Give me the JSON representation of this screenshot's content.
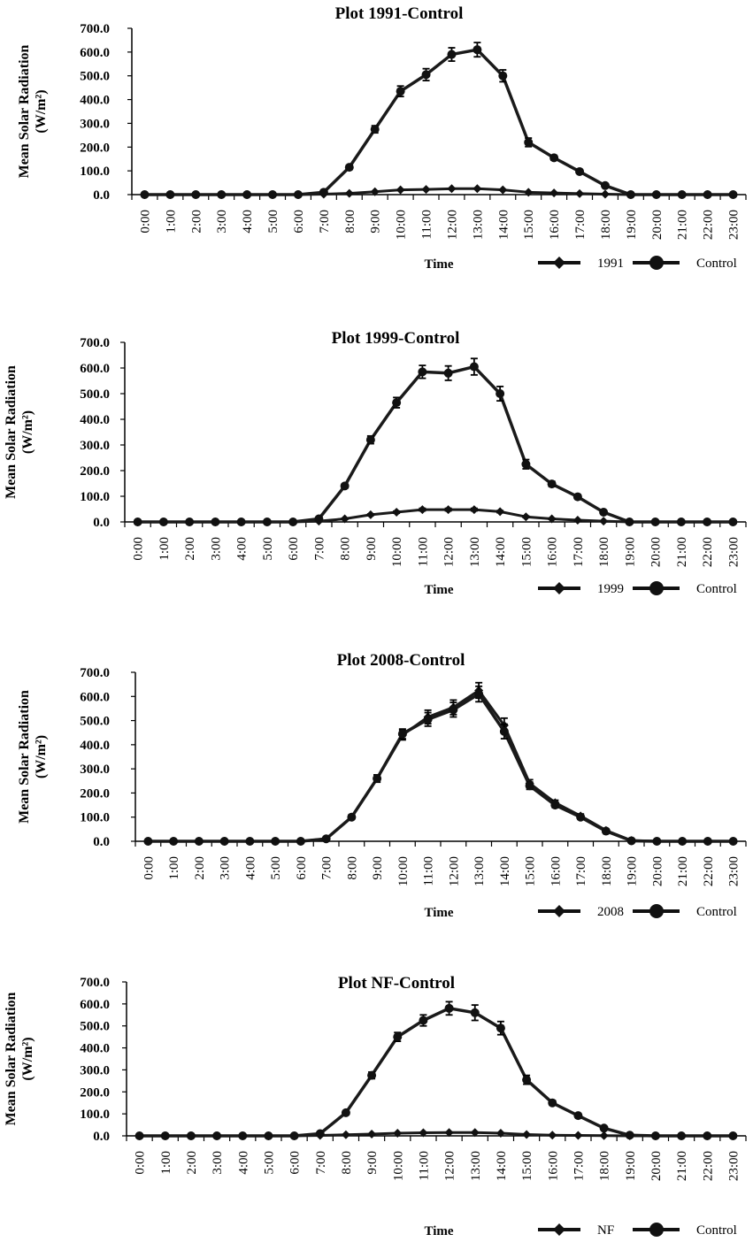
{
  "chart_data": [
    {
      "type": "line",
      "title": "Plot 1991-Control",
      "ylabel_line1": "Mean Solar Radiation",
      "ylabel_line2": "(W/m²)",
      "xlabel": "Time",
      "yticks": [
        "0.0",
        "100.0",
        "200.0",
        "300.0",
        "400.0",
        "500.0",
        "600.0",
        "700.0"
      ],
      "ylim": [
        0,
        700
      ],
      "categories": [
        "0:00",
        "1:00",
        "2:00",
        "3:00",
        "4:00",
        "5:00",
        "6:00",
        "7:00",
        "8:00",
        "9:00",
        "10:00",
        "11:00",
        "12:00",
        "13:00",
        "14:00",
        "15:00",
        "16:00",
        "17:00",
        "18:00",
        "19:00",
        "20:00",
        "21:00",
        "22:00",
        "23:00"
      ],
      "series": [
        {
          "name": "1991",
          "marker": "diamond",
          "values": [
            0,
            0,
            0,
            0,
            0,
            0,
            0,
            2,
            5,
            12,
            20,
            22,
            25,
            25,
            20,
            10,
            7,
            4,
            2,
            0,
            0,
            0,
            0,
            0
          ],
          "errors": [
            0,
            0,
            0,
            0,
            0,
            0,
            0,
            0,
            0,
            0,
            0,
            0,
            0,
            0,
            0,
            0,
            0,
            0,
            0,
            0,
            0,
            0,
            0,
            0
          ]
        },
        {
          "name": "Control",
          "marker": "circle",
          "values": [
            0,
            0,
            0,
            0,
            0,
            0,
            0,
            10,
            115,
            275,
            435,
            505,
            590,
            610,
            500,
            220,
            155,
            97,
            38,
            0,
            0,
            0,
            0,
            0
          ],
          "errors": [
            0,
            0,
            0,
            0,
            0,
            0,
            0,
            2,
            8,
            15,
            22,
            25,
            28,
            30,
            25,
            18,
            10,
            8,
            5,
            0,
            0,
            0,
            0,
            0
          ]
        }
      ],
      "grid": false,
      "legend_position": "bottom-right"
    },
    {
      "type": "line",
      "title": "Plot 1999-Control",
      "ylabel_line1": "Mean Solar Radiation",
      "ylabel_line2": "(W/m²)",
      "xlabel": "Time",
      "yticks": [
        "0.0",
        "100.0",
        "200.0",
        "300.0",
        "400.0",
        "500.0",
        "600.0",
        "700.0"
      ],
      "ylim": [
        0,
        700
      ],
      "categories": [
        "0:00",
        "1:00",
        "2:00",
        "3:00",
        "4:00",
        "5:00",
        "6:00",
        "7:00",
        "8:00",
        "9:00",
        "10:00",
        "11:00",
        "12:00",
        "13:00",
        "14:00",
        "15:00",
        "16:00",
        "17:00",
        "18:00",
        "19:00",
        "20:00",
        "21:00",
        "22:00",
        "23:00"
      ],
      "series": [
        {
          "name": "1999",
          "marker": "diamond",
          "values": [
            0,
            0,
            0,
            0,
            0,
            0,
            0,
            3,
            12,
            28,
            38,
            48,
            48,
            48,
            40,
            20,
            12,
            7,
            3,
            0,
            0,
            0,
            0,
            0
          ],
          "errors": [
            0,
            0,
            0,
            0,
            0,
            0,
            0,
            0,
            2,
            3,
            4,
            5,
            5,
            5,
            4,
            3,
            2,
            1,
            1,
            0,
            0,
            0,
            0,
            0
          ]
        },
        {
          "name": "Control",
          "marker": "circle",
          "values": [
            0,
            0,
            0,
            0,
            0,
            0,
            0,
            12,
            140,
            320,
            465,
            585,
            580,
            605,
            500,
            225,
            148,
            98,
            38,
            0,
            0,
            0,
            0,
            0
          ],
          "errors": [
            0,
            0,
            0,
            0,
            0,
            0,
            0,
            2,
            8,
            15,
            20,
            25,
            28,
            32,
            28,
            18,
            10,
            8,
            5,
            0,
            0,
            0,
            0,
            0
          ]
        }
      ],
      "grid": false,
      "legend_position": "bottom-right"
    },
    {
      "type": "line",
      "title": "Plot 2008-Control",
      "ylabel_line1": "Mean Solar Radiation",
      "ylabel_line2": "(W/m²)",
      "xlabel": "Time",
      "yticks": [
        "0.0",
        "100.0",
        "200.0",
        "300.0",
        "400.0",
        "500.0",
        "600.0",
        "700.0"
      ],
      "ylim": [
        0,
        700
      ],
      "categories": [
        "0:00",
        "1:00",
        "2:00",
        "3:00",
        "4:00",
        "5:00",
        "6:00",
        "7:00",
        "8:00",
        "9:00",
        "10:00",
        "11:00",
        "12:00",
        "13:00",
        "14:00",
        "15:00",
        "16:00",
        "17:00",
        "18:00",
        "19:00",
        "20:00",
        "21:00",
        "22:00",
        "23:00"
      ],
      "series": [
        {
          "name": "2008",
          "marker": "diamond",
          "values": [
            0,
            0,
            0,
            0,
            0,
            0,
            0,
            10,
            100,
            260,
            440,
            515,
            555,
            625,
            480,
            240,
            160,
            105,
            45,
            3,
            0,
            0,
            0,
            0
          ],
          "errors": [
            0,
            0,
            0,
            0,
            0,
            0,
            0,
            2,
            8,
            15,
            20,
            28,
            30,
            32,
            30,
            15,
            10,
            8,
            5,
            0,
            0,
            0,
            0,
            0
          ]
        },
        {
          "name": "Control",
          "marker": "circle",
          "values": [
            0,
            0,
            0,
            0,
            0,
            0,
            0,
            10,
            100,
            260,
            445,
            505,
            545,
            610,
            455,
            230,
            150,
            100,
            42,
            2,
            0,
            0,
            0,
            0
          ],
          "errors": [
            0,
            0,
            0,
            0,
            0,
            0,
            0,
            2,
            8,
            15,
            20,
            28,
            30,
            32,
            30,
            15,
            10,
            8,
            5,
            0,
            0,
            0,
            0,
            0
          ]
        }
      ],
      "grid": false,
      "legend_position": "bottom-right"
    },
    {
      "type": "line",
      "title": "Plot NF-Control",
      "ylabel_line1": "Mean Solar Radiation",
      "ylabel_line2": "(W/m²)",
      "xlabel": "Time",
      "yticks": [
        "0.0",
        "100.0",
        "200.0",
        "300.0",
        "400.0",
        "500.0",
        "600.0",
        "700.0"
      ],
      "ylim": [
        0,
        700
      ],
      "categories": [
        "0:00",
        "1:00",
        "2:00",
        "3:00",
        "4:00",
        "5:00",
        "6:00",
        "7:00",
        "8:00",
        "9:00",
        "10:00",
        "11:00",
        "12:00",
        "13:00",
        "14:00",
        "15:00",
        "16:00",
        "17:00",
        "18:00",
        "19:00",
        "20:00",
        "21:00",
        "22:00",
        "23:00"
      ],
      "series": [
        {
          "name": "NF",
          "marker": "diamond",
          "values": [
            0,
            0,
            0,
            0,
            0,
            0,
            0,
            2,
            5,
            8,
            12,
            14,
            15,
            15,
            12,
            6,
            3,
            2,
            1,
            0,
            0,
            0,
            0,
            0
          ],
          "errors": [
            0,
            0,
            0,
            0,
            0,
            0,
            0,
            0,
            0,
            0,
            0,
            0,
            0,
            0,
            0,
            0,
            0,
            0,
            0,
            0,
            0,
            0,
            0,
            0
          ]
        },
        {
          "name": "Control",
          "marker": "circle",
          "values": [
            0,
            0,
            0,
            0,
            0,
            0,
            0,
            10,
            105,
            275,
            450,
            525,
            580,
            560,
            490,
            255,
            150,
            92,
            35,
            3,
            0,
            0,
            0,
            0
          ],
          "errors": [
            0,
            0,
            0,
            0,
            0,
            0,
            0,
            2,
            8,
            15,
            20,
            25,
            30,
            35,
            30,
            20,
            10,
            8,
            5,
            0,
            0,
            0,
            0,
            0
          ]
        }
      ],
      "grid": false,
      "legend_position": "bottom-right"
    }
  ]
}
